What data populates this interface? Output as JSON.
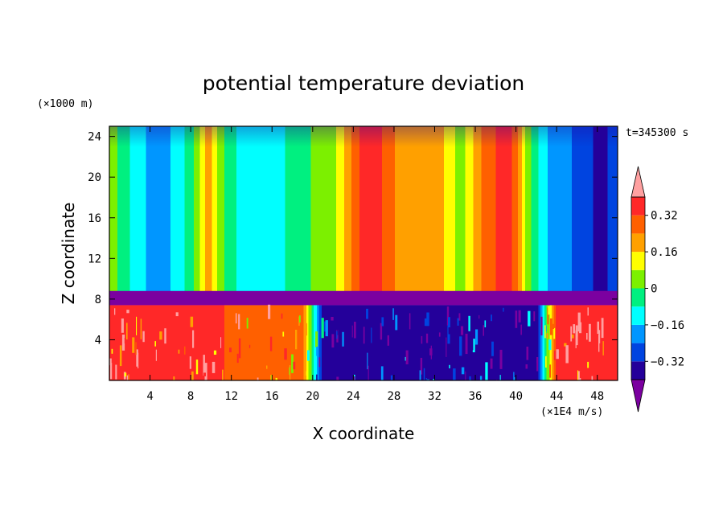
{
  "chart_data": {
    "type": "heatmap",
    "title": "potential temperature deviation",
    "xlabel": "X coordinate",
    "ylabel": "Z coordinate",
    "x_units": "(×1E4 m/s)",
    "y_units": "(×1000 m)",
    "time_label": "t=345300 s",
    "xlim": [
      0,
      50
    ],
    "ylim": [
      0,
      25
    ],
    "x_ticks": [
      4,
      8,
      12,
      16,
      20,
      24,
      28,
      32,
      36,
      40,
      44,
      48
    ],
    "y_ticks": [
      4,
      8,
      12,
      16,
      20,
      24
    ],
    "colorbar": {
      "levels": [
        -0.4,
        -0.32,
        -0.24,
        -0.16,
        -0.08,
        0,
        0.08,
        0.16,
        0.24,
        0.32,
        0.4
      ],
      "labels": [
        "0.32",
        "0.16",
        "0",
        "−0.16",
        "−0.32"
      ],
      "label_values": [
        0.32,
        0.16,
        0,
        -0.16,
        -0.32
      ],
      "colors": [
        "#7b00a0",
        "#24009a",
        "#0044e0",
        "#0096ff",
        "#00ffff",
        "#00f080",
        "#7cf000",
        "#ffff00",
        "#ffa000",
        "#ff6000",
        "#ff2828",
        "#ffa0a0"
      ],
      "extend": "both"
    },
    "upper_columns": {
      "x": [
        0,
        2.5,
        4,
        6,
        8,
        9.5,
        10,
        11,
        13,
        16,
        19,
        22,
        25,
        26,
        27,
        29,
        32,
        34.5,
        37,
        39,
        40,
        41,
        43,
        46,
        48,
        50
      ],
      "value": [
        0.05,
        -0.12,
        -0.18,
        -0.16,
        -0.04,
        0.18,
        0.16,
        0.02,
        -0.12,
        -0.12,
        -0.02,
        0.06,
        0.36,
        0.38,
        0.3,
        0.18,
        0.22,
        0.04,
        0.28,
        0.36,
        0.28,
        0.04,
        -0.16,
        -0.26,
        -0.34,
        -0.3
      ]
    },
    "inversion_layer_z": 8,
    "lower_layer": {
      "x": [
        0,
        9,
        12,
        18,
        19,
        21,
        24,
        42,
        44,
        49.5,
        50
      ],
      "value": [
        0.38,
        0.38,
        0.3,
        0.26,
        0.26,
        -0.38,
        -0.38,
        -0.38,
        0.38,
        0.38,
        0.38
      ]
    }
  }
}
